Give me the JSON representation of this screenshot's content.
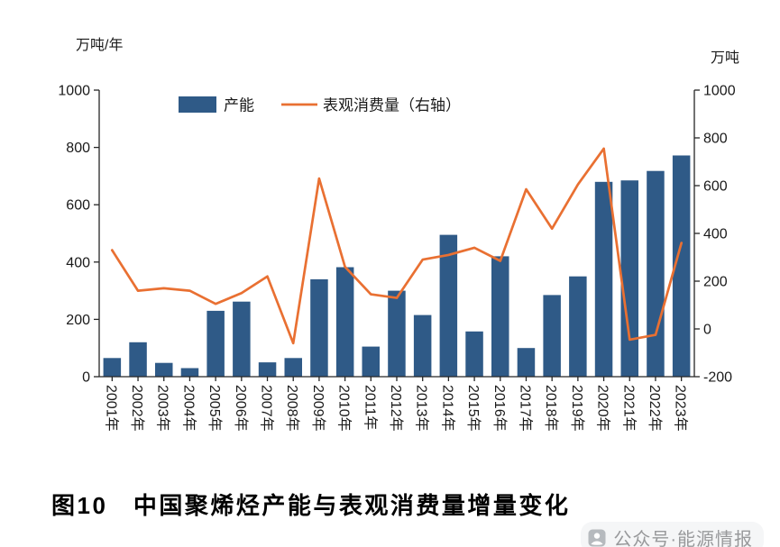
{
  "page": {
    "caption": "图10　中国聚烯烃产能与表观消费量增量变化",
    "watermark": "公众号·能源情报"
  },
  "chart_data": {
    "type": "bar",
    "title": "图10　中国聚烯烃产能与表观消费量增量变化",
    "legend_position": "top-inside",
    "grid": false,
    "left_axis": {
      "unit_label": "万吨/年",
      "min": 0,
      "max": 1000,
      "tick_step": 200,
      "ticks": [
        0,
        200,
        400,
        600,
        800,
        1000
      ]
    },
    "right_axis": {
      "unit_label": "万吨",
      "min": -200,
      "max": 1000,
      "tick_step": 200,
      "ticks": [
        -200,
        0,
        200,
        400,
        600,
        800,
        1000
      ]
    },
    "categories": [
      "2001年",
      "2002年",
      "2003年",
      "2004年",
      "2005年",
      "2006年",
      "2007年",
      "2008年",
      "2009年",
      "2010年",
      "2011年",
      "2012年",
      "2013年",
      "2014年",
      "2015年",
      "2016年",
      "2017年",
      "2018年",
      "2019年",
      "2020年",
      "2021年",
      "2022年",
      "2023年"
    ],
    "series": [
      {
        "name": "产能",
        "type": "bar",
        "axis": "left",
        "color": "#2f5a87",
        "values": [
          65,
          120,
          48,
          30,
          230,
          262,
          50,
          65,
          340,
          382,
          105,
          300,
          215,
          495,
          158,
          420,
          100,
          285,
          350,
          680,
          685,
          718,
          772
        ]
      },
      {
        "name": "表观消费量（右轴）",
        "type": "line",
        "axis": "right",
        "color": "#e97032",
        "values": [
          330,
          160,
          170,
          160,
          105,
          150,
          220,
          -60,
          630,
          260,
          145,
          130,
          290,
          310,
          340,
          285,
          585,
          420,
          605,
          755,
          -45,
          -25,
          360
        ]
      }
    ]
  }
}
